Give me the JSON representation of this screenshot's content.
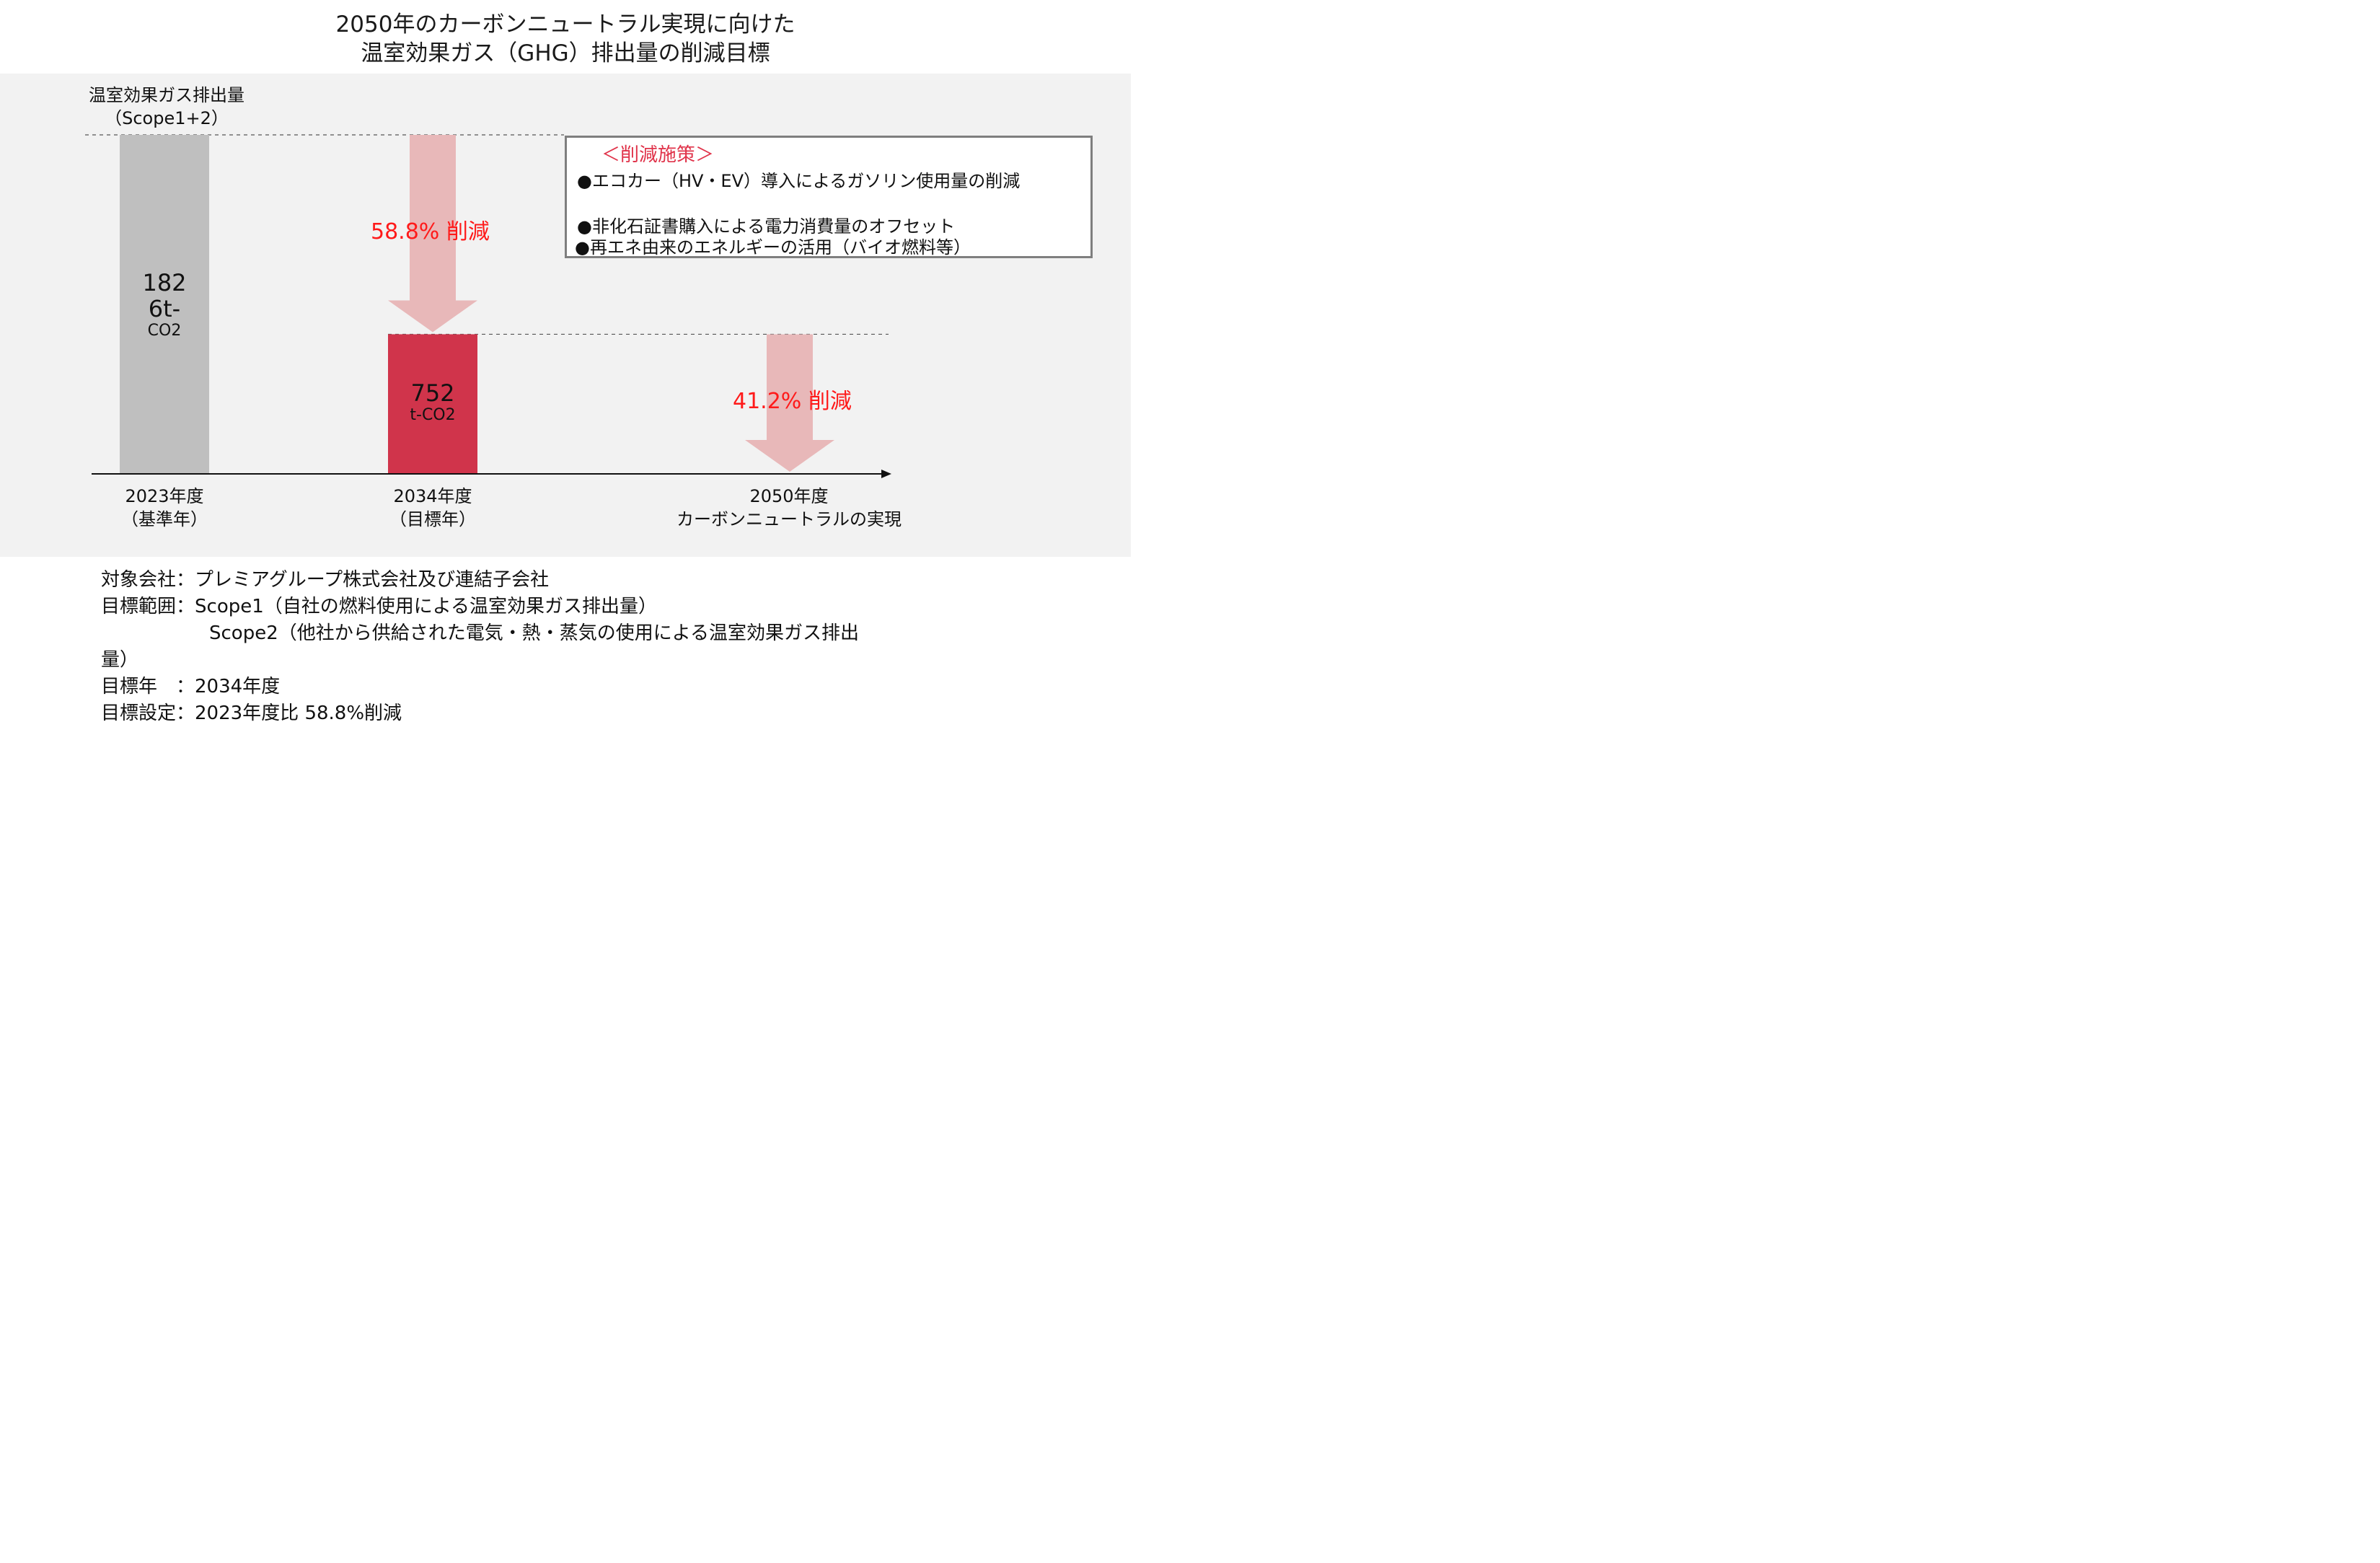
{
  "title": {
    "line1": "2050年のカーボンニュートラル実現に向けた",
    "line2": "温室効果ガス（GHG）排出量の削減目標"
  },
  "chart_data": {
    "type": "bar",
    "ylabel_line1": "温室効果ガス排出量",
    "ylabel_line2": "（Scope1+2）",
    "categories": [
      {
        "line1": "2023年度",
        "line2": "（基準年）"
      },
      {
        "line1": "2034年度",
        "line2": "（目標年）"
      },
      {
        "line1": "2050年度",
        "line2": "カーボンニュートラルの実現"
      }
    ],
    "values": [
      1826,
      752,
      0
    ],
    "unit": "t-CO2",
    "bar_labels": [
      {
        "line1": "182",
        "line2": "6t-",
        "line3": "CO2"
      },
      {
        "line1": "752",
        "line2": "t-CO2"
      }
    ],
    "bar_colors": [
      "#bfbfbf",
      "#d0344b",
      null
    ],
    "arrow_color": "#e8b8b9",
    "reductions": [
      {
        "from": 0,
        "to": 1,
        "percent": 58.8,
        "label": "58.8% 削減"
      },
      {
        "from": 1,
        "to": 2,
        "percent": 41.2,
        "label": "41.2% 削減"
      }
    ],
    "ylim": [
      0,
      1826
    ],
    "grid": false
  },
  "measures": {
    "title": "＜削減施策＞",
    "items": [
      "●エコカー（HV・EV）導入によるガソリン使用量の削減",
      "●非化石証書購入による電力消費量のオフセット",
      "●再エネ由来のエネルギーの活用（バイオ燃料等）"
    ]
  },
  "notes": {
    "rows": [
      {
        "label": "対象会社：",
        "value": "プレミアグループ株式会社及び連結子会社"
      },
      {
        "label": "目標範囲：",
        "value": "Scope1（自社の燃料使用による温室効果ガス排出量）"
      },
      {
        "label": "",
        "value": "Scope2（他社から供給された電気・熱・蒸気の使用による温室効果ガス排出"
      },
      {
        "label": "量）",
        "value": ""
      },
      {
        "label": "目標年　：",
        "value": "2034年度"
      },
      {
        "label": "目標設定：",
        "value": "2023年度比 58.8%削減"
      }
    ]
  }
}
